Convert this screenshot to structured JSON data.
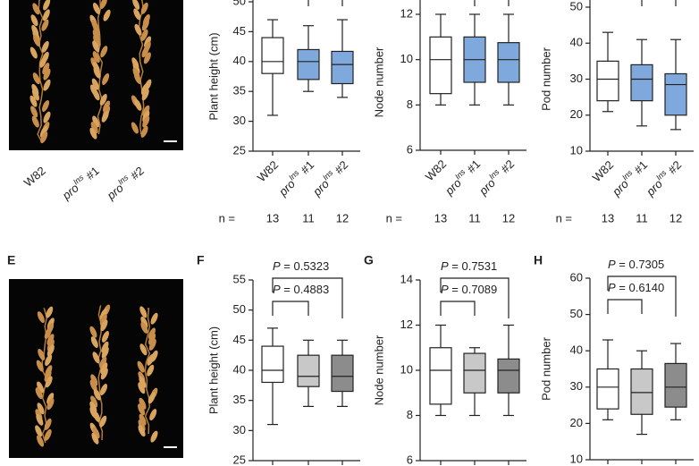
{
  "chart_data": [
    {
      "type": "box",
      "ylabel": "Plant height (cm)",
      "ylim": [
        25,
        50
      ],
      "yticks": [
        25,
        30,
        35,
        40,
        45,
        50
      ],
      "categories": [
        {
          "main": "W82"
        },
        {
          "main": "pro",
          "sup": "Ins",
          "suffix": " #1"
        },
        {
          "main": "pro",
          "sup": "Ins",
          "suffix": " #2"
        }
      ],
      "boxes": [
        {
          "color": "#ffffff",
          "whisker_low": 31,
          "q1": 38,
          "median": 40,
          "q3": 44,
          "whisker_high": 47
        },
        {
          "color": "#7fa9dc",
          "whisker_low": 35,
          "q1": 37,
          "median": 40,
          "q3": 42,
          "whisker_high": 46
        },
        {
          "color": "#7fa9dc",
          "whisker_low": 34,
          "q1": 36.3,
          "median": 39.5,
          "q3": 41.7,
          "whisker_high": 47
        }
      ],
      "n_label": "n =",
      "n": [
        13,
        11,
        12
      ]
    },
    {
      "type": "box",
      "ylabel": "Node number",
      "ylim": [
        6,
        12
      ],
      "yticks": [
        6,
        8,
        10,
        12
      ],
      "categories": [
        {
          "main": "W82"
        },
        {
          "main": "pro",
          "sup": "Ins",
          "suffix": " #1"
        },
        {
          "main": "pro",
          "sup": "Ins",
          "suffix": " #2"
        }
      ],
      "boxes": [
        {
          "color": "#ffffff",
          "whisker_low": 8,
          "q1": 8.5,
          "median": 10,
          "q3": 11,
          "whisker_high": 12
        },
        {
          "color": "#7fa9dc",
          "whisker_low": 8,
          "q1": 9,
          "median": 10,
          "q3": 11,
          "whisker_high": 12
        },
        {
          "color": "#7fa9dc",
          "whisker_low": 8,
          "q1": 9,
          "median": 10,
          "q3": 10.75,
          "whisker_high": 12
        }
      ],
      "n_label": "n =",
      "n": [
        13,
        11,
        12
      ]
    },
    {
      "type": "box",
      "ylabel": "Pod number",
      "ylim": [
        10,
        50
      ],
      "yticks": [
        10,
        20,
        30,
        40,
        50
      ],
      "categories": [
        {
          "main": "W82"
        },
        {
          "main": "pro",
          "sup": "Ins",
          "suffix": " #1"
        },
        {
          "main": "pro",
          "sup": "Ins",
          "suffix": " #2"
        }
      ],
      "boxes": [
        {
          "color": "#ffffff",
          "whisker_low": 21,
          "q1": 24,
          "median": 30,
          "q3": 35,
          "whisker_high": 43
        },
        {
          "color": "#7fa9dc",
          "whisker_low": 17,
          "q1": 24,
          "median": 30,
          "q3": 34,
          "whisker_high": 41
        },
        {
          "color": "#7fa9dc",
          "whisker_low": 16,
          "q1": 20,
          "median": 28.5,
          "q3": 31.5,
          "whisker_high": 41
        }
      ],
      "n_label": "n =",
      "n": [
        13,
        11,
        12
      ]
    },
    {
      "type": "box",
      "panel_label": "F",
      "ylabel": "Plant height (cm)",
      "ylim": [
        25,
        55
      ],
      "yticks": [
        25,
        30,
        35,
        40,
        45,
        50,
        55
      ],
      "boxes": [
        {
          "color": "#ffffff",
          "whisker_low": 31,
          "q1": 38,
          "median": 40,
          "q3": 44,
          "whisker_high": 47
        },
        {
          "color": "#c8c8c8",
          "whisker_low": 34,
          "q1": 37.3,
          "median": 39,
          "q3": 42.5,
          "whisker_high": 45
        },
        {
          "color": "#8c8c8c",
          "whisker_low": 34,
          "q1": 36.5,
          "median": 39,
          "q3": 42.5,
          "whisker_high": 45
        }
      ],
      "comparisons": [
        {
          "symbol": "P",
          "text": " = 0.5323"
        },
        {
          "symbol": "P",
          "text": " = 0.4883"
        }
      ]
    },
    {
      "type": "box",
      "panel_label": "G",
      "ylabel": "Node number",
      "ylim": [
        6,
        14
      ],
      "yticks": [
        6,
        8,
        10,
        12,
        14
      ],
      "boxes": [
        {
          "color": "#ffffff",
          "whisker_low": 8,
          "q1": 8.5,
          "median": 10,
          "q3": 11,
          "whisker_high": 12
        },
        {
          "color": "#c8c8c8",
          "whisker_low": 8,
          "q1": 9,
          "median": 10,
          "q3": 10.75,
          "whisker_high": 11
        },
        {
          "color": "#8c8c8c",
          "whisker_low": 8,
          "q1": 9,
          "median": 10,
          "q3": 10.5,
          "whisker_high": 12
        }
      ],
      "comparisons": [
        {
          "symbol": "P",
          "text": " = 0.7531"
        },
        {
          "symbol": "P",
          "text": " = 0.7089"
        }
      ]
    },
    {
      "type": "box",
      "panel_label": "H",
      "ylabel": "Pod number",
      "ylim": [
        10,
        60
      ],
      "yticks": [
        10,
        20,
        30,
        40,
        50,
        60
      ],
      "boxes": [
        {
          "color": "#ffffff",
          "whisker_low": 21,
          "q1": 24,
          "median": 30,
          "q3": 35,
          "whisker_high": 43
        },
        {
          "color": "#c8c8c8",
          "whisker_low": 17,
          "q1": 22.5,
          "median": 28.5,
          "q3": 35,
          "whisker_high": 40
        },
        {
          "color": "#8c8c8c",
          "whisker_low": 21,
          "q1": 24.5,
          "median": 30,
          "q3": 36.5,
          "whisker_high": 42
        }
      ],
      "comparisons": [
        {
          "symbol": "P",
          "text": " = 0.7305"
        },
        {
          "symbol": "P",
          "text": " = 0.6140"
        }
      ]
    }
  ],
  "photos": [
    {
      "labels": [
        {
          "main": "W82"
        },
        {
          "main": "pro",
          "sup": "Ins",
          "suffix": " #1"
        },
        {
          "main": "pro",
          "sup": "Ins",
          "suffix": " #2"
        }
      ]
    },
    {
      "panel_label": "E"
    }
  ]
}
